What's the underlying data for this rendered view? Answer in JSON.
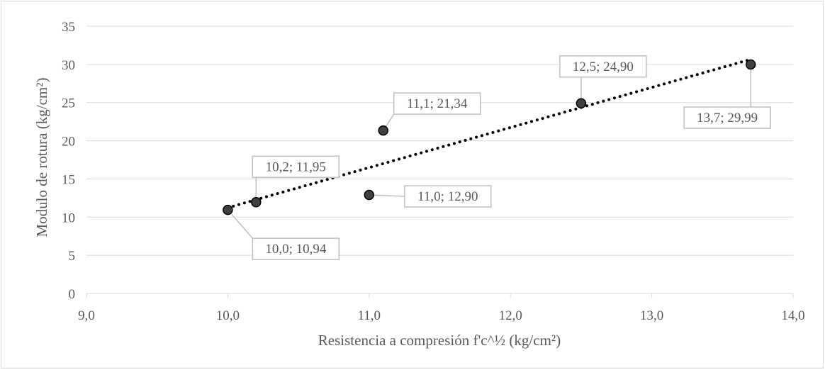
{
  "chart_data": {
    "type": "scatter",
    "title": "",
    "xlabel": "Resistencia a compresión f'c^½ (kg/cm²)",
    "ylabel": "Modulo de rotura (kg/cm²)",
    "xlim": [
      9.0,
      14.0
    ],
    "ylim": [
      0,
      35
    ],
    "x_ticks": [
      "9,0",
      "10,0",
      "11,0",
      "12,0",
      "13,0",
      "14,0"
    ],
    "y_ticks": [
      "0",
      "5",
      "10",
      "15",
      "20",
      "25",
      "30",
      "35"
    ],
    "grid": "horizontal",
    "trendline": "dotted",
    "points": [
      {
        "x": 10.0,
        "y": 10.94,
        "label": "10,0; 10,94"
      },
      {
        "x": 10.2,
        "y": 11.95,
        "label": "10,2; 11,95"
      },
      {
        "x": 11.0,
        "y": 12.9,
        "label": "11,0; 12,90"
      },
      {
        "x": 11.1,
        "y": 21.34,
        "label": "11,1; 21,34"
      },
      {
        "x": 12.5,
        "y": 24.9,
        "label": "12,5; 24,90"
      },
      {
        "x": 13.7,
        "y": 29.99,
        "label": "13,7; 29,99"
      }
    ],
    "colors": {
      "marker": "#404040",
      "marker_edge": "#000000",
      "trend": "#000000",
      "grid": "#d9d9d9",
      "text": "#595959"
    }
  }
}
